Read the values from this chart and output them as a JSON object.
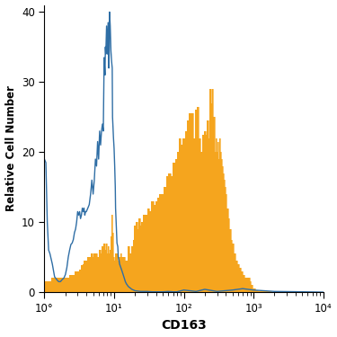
{
  "title": "",
  "xlabel": "CD163",
  "ylabel": "Relative Cell Number",
  "xlim_log": [
    1,
    10000
  ],
  "ylim": [
    0,
    41
  ],
  "yticks": [
    0,
    10,
    20,
    30,
    40
  ],
  "xtick_positions": [
    1,
    10,
    100,
    1000,
    10000
  ],
  "xtick_labels": [
    "10°",
    "10¹",
    "10²",
    "10³",
    "10⁴"
  ],
  "blue_color": "#2f6ea5",
  "orange_color": "#f5a51e",
  "background_color": "#ffffff",
  "blue_x": [
    1.0,
    1.05,
    1.1,
    1.15,
    1.2,
    1.3,
    1.4,
    1.5,
    1.6,
    1.7,
    1.8,
    1.9,
    2.0,
    2.1,
    2.2,
    2.3,
    2.4,
    2.5,
    2.6,
    2.7,
    2.8,
    2.9,
    3.0,
    3.1,
    3.2,
    3.3,
    3.4,
    3.5,
    3.6,
    3.7,
    3.8,
    3.9,
    4.0,
    4.2,
    4.4,
    4.6,
    4.8,
    5.0,
    5.2,
    5.4,
    5.6,
    5.8,
    6.0,
    6.2,
    6.4,
    6.6,
    6.8,
    7.0,
    7.2,
    7.4,
    7.5,
    7.6,
    7.8,
    8.0,
    8.2,
    8.4,
    8.5,
    8.6,
    8.8,
    9.0,
    9.2,
    9.4,
    9.5,
    9.6,
    9.8,
    10.0,
    10.2,
    10.4,
    10.5,
    10.7,
    11.0,
    11.3,
    11.5,
    11.8,
    12.0,
    12.5,
    13.0,
    13.5,
    14.0,
    14.5,
    15.0,
    15.5,
    16.0,
    17.0,
    18.0,
    19.0,
    20.0,
    22.0,
    24.0,
    26.0,
    28.0,
    30.0,
    35.0,
    40.0,
    50.0,
    60.0,
    70.0,
    80.0,
    100.0,
    150.0,
    200.0,
    300.0,
    500.0,
    700.0,
    1000.0,
    2000.0,
    5000.0,
    10000.0
  ],
  "blue_y": [
    19.0,
    18.5,
    10.0,
    6.0,
    5.5,
    4.0,
    2.2,
    1.8,
    1.5,
    1.5,
    1.8,
    2.0,
    2.5,
    3.5,
    5.0,
    6.0,
    6.8,
    7.0,
    7.5,
    8.5,
    9.0,
    10.0,
    11.5,
    11.0,
    11.5,
    10.5,
    11.0,
    12.0,
    11.5,
    12.0,
    11.0,
    11.5,
    11.5,
    12.0,
    12.5,
    14.0,
    16.0,
    14.0,
    16.0,
    19.0,
    18.0,
    21.5,
    19.0,
    23.0,
    21.0,
    23.0,
    24.0,
    23.0,
    33.5,
    31.0,
    35.0,
    34.0,
    38.0,
    34.0,
    38.5,
    32.0,
    34.0,
    40.0,
    38.0,
    34.5,
    33.0,
    32.0,
    25.0,
    24.0,
    22.0,
    20.5,
    18.0,
    15.0,
    12.0,
    10.0,
    7.0,
    6.5,
    5.0,
    4.5,
    4.0,
    3.5,
    3.0,
    2.5,
    2.0,
    1.5,
    1.2,
    1.0,
    0.8,
    0.6,
    0.4,
    0.3,
    0.2,
    0.15,
    0.1,
    0.1,
    0.1,
    0.1,
    0.05,
    0.05,
    0.05,
    0.1,
    0.05,
    0.05,
    0.3,
    0.1,
    0.4,
    0.1,
    0.3,
    0.5,
    0.3,
    0.1,
    0.05,
    0.0
  ],
  "orange_x": [
    1.0,
    1.5,
    2.0,
    2.5,
    3.0,
    3.2,
    3.4,
    3.6,
    3.8,
    4.0,
    4.2,
    4.5,
    4.7,
    5.0,
    5.2,
    5.5,
    5.8,
    6.0,
    6.2,
    6.5,
    6.8,
    7.0,
    7.2,
    7.5,
    7.8,
    8.0,
    8.2,
    8.5,
    8.8,
    9.0,
    9.2,
    9.5,
    9.8,
    10.0,
    10.5,
    11.0,
    11.5,
    12.0,
    12.5,
    13.0,
    13.5,
    14.0,
    15.0,
    16.0,
    17.0,
    18.0,
    19.0,
    20.0,
    21.0,
    22.0,
    23.0,
    24.0,
    25.0,
    27.0,
    29.0,
    31.0,
    33.0,
    35.0,
    38.0,
    40.0,
    43.0,
    46.0,
    50.0,
    54.0,
    58.0,
    62.0,
    67.0,
    72.0,
    77.0,
    82.0,
    87.0,
    93.0,
    100.0,
    107.0,
    115.0,
    122.0,
    130.0,
    140.0,
    150.0,
    160.0,
    170.0,
    180.0,
    190.0,
    200.0,
    210.0,
    220.0,
    230.0,
    240.0,
    250.0,
    260.0,
    270.0,
    280.0,
    290.0,
    300.0,
    310.0,
    320.0,
    330.0,
    340.0,
    350.0,
    360.0,
    370.0,
    380.0,
    390.0,
    400.0,
    420.0,
    440.0,
    460.0,
    480.0,
    500.0,
    530.0,
    560.0,
    600.0,
    640.0,
    680.0,
    720.0,
    760.0,
    800.0,
    850.0,
    900.0,
    950.0,
    1000.0,
    1100.0,
    1200.0,
    1400.0,
    1600.0,
    2000.0,
    3000.0,
    5000.0,
    10000.0
  ],
  "orange_y": [
    1.5,
    2.0,
    2.0,
    2.5,
    3.0,
    3.2,
    3.8,
    4.0,
    4.5,
    4.5,
    5.0,
    5.0,
    5.5,
    5.0,
    5.5,
    5.5,
    5.0,
    5.0,
    6.0,
    5.5,
    6.5,
    6.5,
    7.0,
    6.0,
    7.0,
    5.5,
    6.5,
    5.5,
    6.0,
    8.0,
    11.0,
    8.5,
    5.0,
    4.5,
    5.5,
    5.5,
    4.5,
    5.0,
    5.5,
    5.0,
    5.0,
    5.0,
    4.5,
    6.5,
    5.5,
    6.5,
    7.5,
    9.5,
    10.0,
    9.0,
    10.5,
    9.5,
    10.0,
    11.0,
    11.0,
    12.0,
    11.5,
    13.0,
    12.5,
    13.0,
    13.5,
    14.0,
    14.0,
    15.0,
    16.5,
    17.0,
    16.5,
    18.5,
    19.0,
    20.0,
    22.0,
    21.0,
    22.0,
    23.0,
    24.5,
    25.5,
    25.5,
    22.0,
    26.0,
    26.5,
    22.0,
    20.0,
    22.5,
    23.0,
    22.5,
    24.5,
    22.0,
    29.0,
    27.0,
    29.0,
    25.0,
    20.0,
    22.0,
    20.0,
    21.5,
    19.0,
    22.0,
    20.0,
    19.0,
    18.0,
    17.0,
    16.0,
    15.0,
    14.0,
    12.0,
    10.5,
    9.0,
    7.5,
    7.0,
    5.5,
    4.5,
    4.0,
    3.5,
    3.0,
    2.5,
    2.0,
    2.0,
    2.0,
    1.5,
    1.0,
    0.5,
    0.3,
    0.2,
    0.1,
    0.1,
    0.05,
    0.02,
    0.0,
    0.0
  ]
}
